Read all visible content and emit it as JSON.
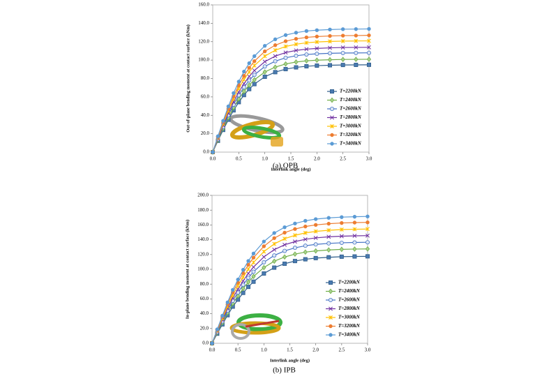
{
  "chart_data": [
    {
      "type": "line",
      "caption": "(a)  OPB",
      "x_label": "Interlink angle (deg)",
      "y_label": "Out-of-plane bending moment at contact surface (kNm)",
      "x": [
        0,
        0.1,
        0.2,
        0.3,
        0.4,
        0.5,
        0.6,
        0.7,
        0.8,
        1.0,
        1.2,
        1.4,
        1.6,
        1.8,
        2.0,
        2.25,
        2.5,
        2.75,
        3.0
      ],
      "xlim": [
        0,
        3
      ],
      "ylim": [
        0,
        160
      ],
      "grid": false,
      "legend": "lower right",
      "xticks": [
        {
          "value": 0,
          "label": "0.0"
        },
        {
          "value": 0.5,
          "label": "0.5"
        },
        {
          "value": 1,
          "label": "1.0"
        },
        {
          "value": 1.5,
          "label": "1.5"
        },
        {
          "value": 2,
          "label": "2.0"
        },
        {
          "value": 2.5,
          "label": "2.5"
        },
        {
          "value": 3,
          "label": "3.0"
        }
      ],
      "yticks": [
        {
          "value": 0,
          "label": "0.0"
        },
        {
          "value": 20,
          "label": "20.0"
        },
        {
          "value": 40,
          "label": "40.0"
        },
        {
          "value": 60,
          "label": "60.0"
        },
        {
          "value": 80,
          "label": "80.0"
        },
        {
          "value": 100,
          "label": "100.0"
        },
        {
          "value": 120,
          "label": "120.0"
        },
        {
          "value": 140,
          "label": "140.0"
        },
        {
          "value": 160,
          "label": "160.0"
        }
      ],
      "series": [
        {
          "name": "T=2200kN",
          "color": "#2e5c8a",
          "marker": "square",
          "values": [
            0,
            12.3,
            24.1,
            35.2,
            45.4,
            54.3,
            62.0,
            68.5,
            73.9,
            81.9,
            86.9,
            90.2,
            92.1,
            93.3,
            94.0,
            94.4,
            94.7,
            94.8,
            94.9
          ]
        },
        {
          "name": "T=2400kN",
          "color": "#70ad47",
          "marker": "diamond",
          "values": [
            0,
            13.0,
            25.7,
            37.5,
            48.3,
            57.8,
            66.0,
            72.8,
            78.6,
            87.1,
            92.4,
            95.8,
            97.9,
            99.2,
            99.9,
            100.4,
            100.7,
            100.8,
            100.9
          ]
        },
        {
          "name": "T=2600kN",
          "color": "#4472c4",
          "marker": "circle-open",
          "values": [
            0,
            13.9,
            27.4,
            40.1,
            51.6,
            61.8,
            70.5,
            77.9,
            84.0,
            93.1,
            98.8,
            102.5,
            104.7,
            106.1,
            106.8,
            107.4,
            107.7,
            107.8,
            107.9
          ]
        },
        {
          "name": "T=2800kN",
          "color": "#7030a0",
          "marker": "cross",
          "values": [
            0,
            14.7,
            29.0,
            42.3,
            54.5,
            65.2,
            74.4,
            82.2,
            88.7,
            98.3,
            104.3,
            108.2,
            110.5,
            111.9,
            112.7,
            113.3,
            113.7,
            113.8,
            113.9
          ]
        },
        {
          "name": "T=3000kN",
          "color": "#ffc000",
          "marker": "star",
          "values": [
            0,
            15.6,
            30.7,
            44.9,
            57.8,
            69.2,
            79.0,
            87.2,
            94.1,
            104.3,
            110.7,
            114.8,
            117.2,
            118.8,
            119.7,
            120.3,
            120.6,
            120.8,
            120.9
          ]
        },
        {
          "name": "T=3200kN",
          "color": "#ed7d31",
          "marker": "circle",
          "values": [
            0,
            16.4,
            32.3,
            47.1,
            60.7,
            72.6,
            82.9,
            91.6,
            98.8,
            109.5,
            116.2,
            120.5,
            123.1,
            124.7,
            125.6,
            126.2,
            126.6,
            126.7,
            126.9
          ]
        },
        {
          "name": "T=3400kN",
          "color": "#5b9bd5",
          "marker": "circle",
          "values": [
            0,
            17.3,
            34.0,
            49.7,
            64.1,
            76.6,
            87.5,
            96.6,
            104.3,
            115.5,
            122.6,
            127.2,
            129.8,
            131.6,
            132.5,
            133.2,
            133.6,
            133.7,
            133.9
          ]
        }
      ]
    },
    {
      "type": "line",
      "caption": "(b)  IPB",
      "x_label": "Interlink angle (deg)",
      "y_label": "In-plane bending moment at contact surface (kNm)",
      "x": [
        0,
        0.1,
        0.2,
        0.3,
        0.4,
        0.5,
        0.6,
        0.7,
        0.8,
        1.0,
        1.2,
        1.4,
        1.6,
        1.8,
        2.0,
        2.25,
        2.5,
        2.75,
        3.0
      ],
      "xlim": [
        0,
        3
      ],
      "ylim": [
        0,
        200
      ],
      "grid": false,
      "legend": "lower right",
      "xticks": [
        {
          "value": 0,
          "label": "0.0"
        },
        {
          "value": 0.5,
          "label": "0.5"
        },
        {
          "value": 1,
          "label": "1.0"
        },
        {
          "value": 1.5,
          "label": "1.5"
        },
        {
          "value": 2,
          "label": "2.0"
        },
        {
          "value": 2.5,
          "label": "2.5"
        },
        {
          "value": 3,
          "label": "3.0"
        }
      ],
      "yticks": [
        {
          "value": 0,
          "label": "0.0"
        },
        {
          "value": 20,
          "label": "20.0"
        },
        {
          "value": 40,
          "label": "40.0"
        },
        {
          "value": 60,
          "label": "60.0"
        },
        {
          "value": 80,
          "label": "80.0"
        },
        {
          "value": 100,
          "label": "100.0"
        },
        {
          "value": 120,
          "label": "120.0"
        },
        {
          "value": 140,
          "label": "140.0"
        },
        {
          "value": 160,
          "label": "160.0"
        },
        {
          "value": 180,
          "label": "180.0"
        },
        {
          "value": 200,
          "label": "200.0"
        }
      ],
      "series": [
        {
          "name": "T=2200kN",
          "color": "#2e5c8a",
          "marker": "square",
          "values": [
            0,
            13.0,
            25.6,
            38.0,
            49.6,
            59.1,
            68.2,
            76.3,
            83.3,
            94.4,
            102.3,
            107.6,
            111.2,
            113.6,
            115.2,
            116.3,
            117.1,
            117.4,
            117.6
          ]
        },
        {
          "name": "T=2400kN",
          "color": "#70ad47",
          "marker": "diamond",
          "values": [
            0,
            14.1,
            27.8,
            41.2,
            53.8,
            64.1,
            74.0,
            82.8,
            90.4,
            102.4,
            111.0,
            116.7,
            120.6,
            123.3,
            124.9,
            126.2,
            127.0,
            127.4,
            127.6
          ]
        },
        {
          "name": "T=2600kN",
          "color": "#4472c4",
          "marker": "circle-open",
          "values": [
            0,
            15.1,
            29.7,
            44.1,
            57.5,
            68.6,
            79.2,
            88.6,
            96.7,
            109.6,
            118.8,
            124.9,
            129.1,
            131.9,
            133.7,
            135.1,
            135.9,
            136.3,
            136.6
          ]
        },
        {
          "name": "T=2800kN",
          "color": "#7030a0",
          "marker": "cross",
          "values": [
            0,
            16.1,
            31.7,
            47.0,
            61.3,
            73.1,
            84.4,
            94.5,
            103.1,
            116.8,
            126.6,
            133.2,
            137.5,
            140.6,
            142.5,
            144.0,
            144.8,
            145.3,
            145.6
          ]
        },
        {
          "name": "T=3000kN",
          "color": "#ffc000",
          "marker": "star",
          "values": [
            0,
            17.1,
            33.6,
            49.9,
            65.1,
            77.7,
            89.6,
            100.3,
            109.4,
            124.0,
            134.4,
            141.4,
            146.0,
            149.3,
            151.3,
            152.8,
            153.8,
            154.2,
            154.5
          ]
        },
        {
          "name": "T=3200kN",
          "color": "#ed7d31",
          "marker": "circle",
          "values": [
            0,
            18.0,
            35.6,
            52.8,
            68.9,
            82.2,
            94.8,
            106.1,
            115.8,
            131.2,
            142.2,
            149.6,
            154.5,
            157.9,
            160.1,
            161.7,
            162.7,
            163.2,
            163.5
          ]
        },
        {
          "name": "T=3400kN",
          "color": "#5b9bd5",
          "marker": "circle",
          "values": [
            0,
            18.9,
            37.3,
            55.4,
            72.2,
            86.2,
            99.4,
            111.3,
            121.4,
            137.6,
            149.1,
            156.9,
            162.0,
            165.6,
            167.9,
            169.6,
            170.6,
            171.1,
            171.5
          ]
        }
      ]
    }
  ]
}
